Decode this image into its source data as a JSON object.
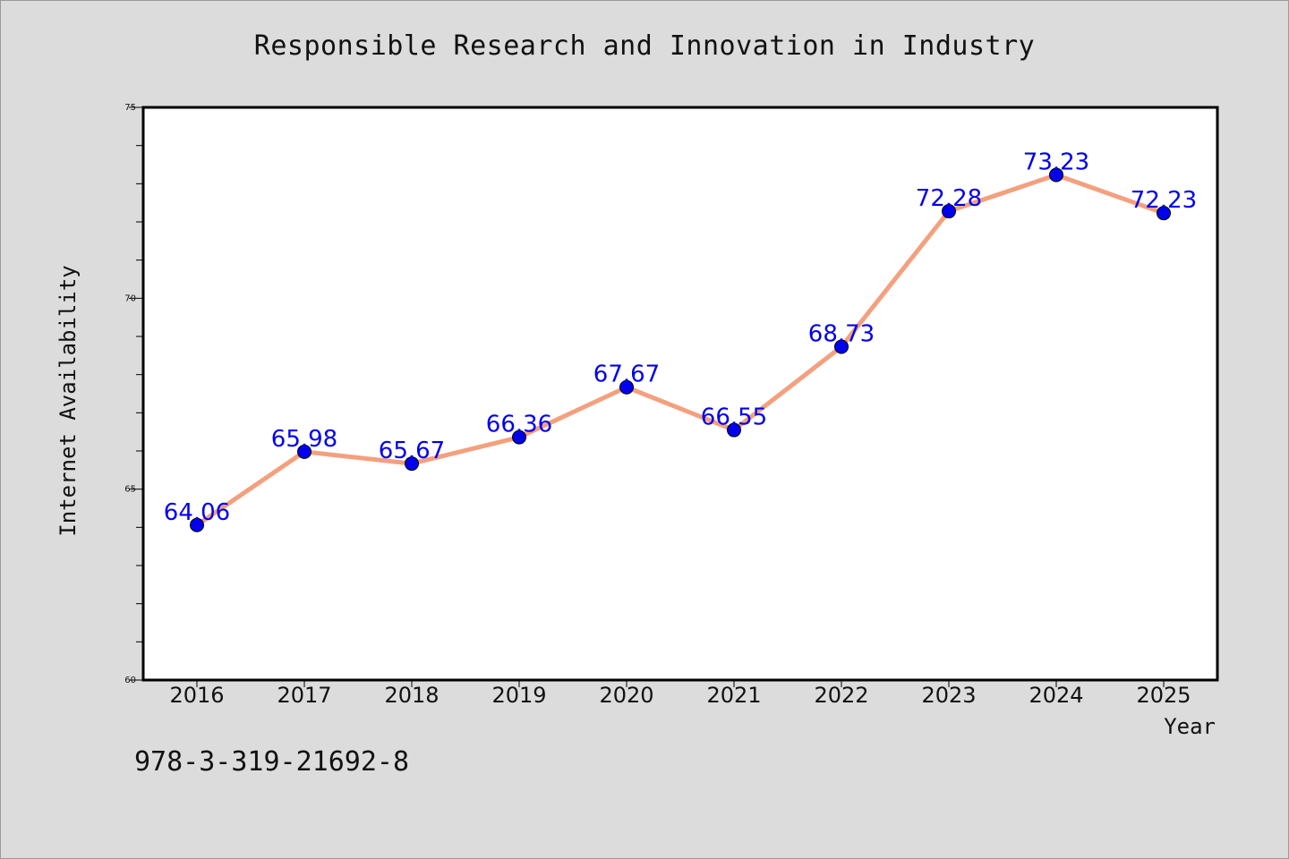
{
  "chart_data": {
    "type": "line",
    "title": "Responsible Research and Innovation in Industry",
    "xlabel": "Year",
    "ylabel": "Internet Availability",
    "x": [
      "2016",
      "2017",
      "2018",
      "2019",
      "2020",
      "2021",
      "2022",
      "2023",
      "2024",
      "2025"
    ],
    "series": [
      {
        "values": [
          64.06,
          65.98,
          65.67,
          66.36,
          67.67,
          66.55,
          68.73,
          72.28,
          73.23,
          72.23
        ],
        "labels": [
          "64.06",
          "65.98",
          "65.67",
          "66.36",
          "67.67",
          "66.55",
          "68.73",
          "72.28",
          "73.23",
          "72.23"
        ],
        "line_color": "#f4a07e",
        "marker_color": "#0000ee"
      }
    ],
    "ylim": [
      60,
      75
    ],
    "yticks": [
      "60",
      "65",
      "70",
      "75"
    ],
    "grid": false,
    "legend": "none"
  },
  "footer": {
    "isbn": "978-3-319-21692-8"
  }
}
